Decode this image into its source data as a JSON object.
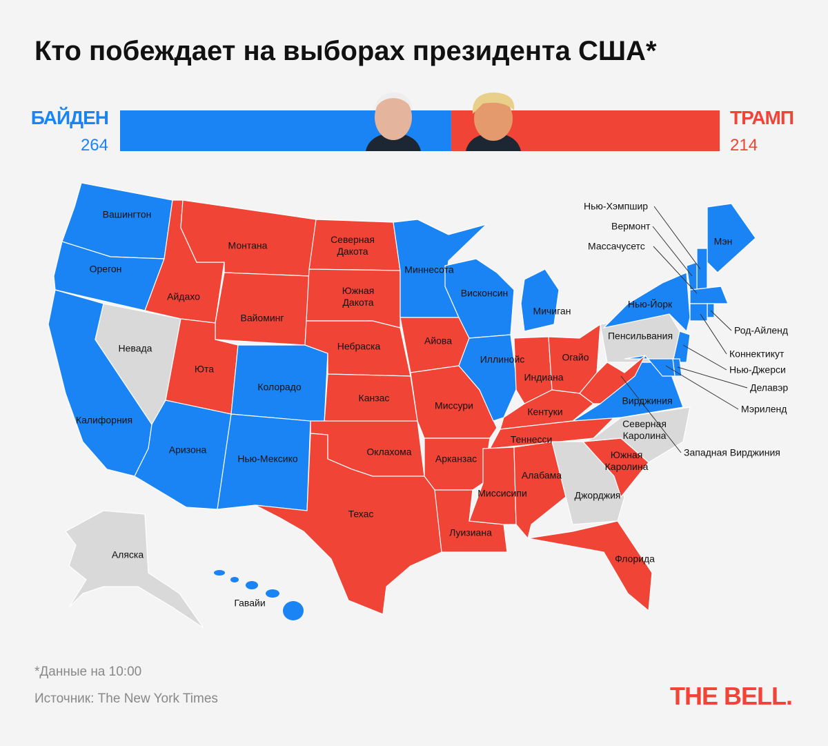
{
  "header": {
    "title": "Кто побеждает на выборах президента США*"
  },
  "scoreboard": {
    "left": {
      "name": "БАЙДЕН",
      "votes": 264,
      "color": "#1a84f4"
    },
    "right": {
      "name": "ТРАМП",
      "votes": 214,
      "color": "#f04436"
    }
  },
  "map": {
    "states": [
      {
        "label": "Вашингтон",
        "color": "#1a84f4"
      },
      {
        "label": "Орегон",
        "color": "#1a84f4"
      },
      {
        "label": "Калифорния",
        "color": "#1a84f4"
      },
      {
        "label": "Невада",
        "color": "#d9d9d9"
      },
      {
        "label": "Айдахо",
        "color": "#f04436"
      },
      {
        "label": "Монтана",
        "color": "#f04436"
      },
      {
        "label": "Вайоминг",
        "color": "#f04436"
      },
      {
        "label": "Юта",
        "color": "#f04436"
      },
      {
        "label": "Колорадо",
        "color": "#1a84f4"
      },
      {
        "label": "Аризона",
        "color": "#1a84f4"
      },
      {
        "label": "Нью-Мексико",
        "color": "#1a84f4"
      },
      {
        "label": "Северная Дакота",
        "color": "#f04436"
      },
      {
        "label": "Южная Дакота",
        "color": "#f04436"
      },
      {
        "label": "Небраска",
        "color": "#f04436"
      },
      {
        "label": "Канзас",
        "color": "#f04436"
      },
      {
        "label": "Оклахома",
        "color": "#f04436"
      },
      {
        "label": "Техас",
        "color": "#f04436"
      },
      {
        "label": "Миннесота",
        "color": "#1a84f4"
      },
      {
        "label": "Айова",
        "color": "#f04436"
      },
      {
        "label": "Миссури",
        "color": "#f04436"
      },
      {
        "label": "Арканзас",
        "color": "#f04436"
      },
      {
        "label": "Луизиана",
        "color": "#f04436"
      },
      {
        "label": "Висконсин",
        "color": "#1a84f4"
      },
      {
        "label": "Иллинойс",
        "color": "#1a84f4"
      },
      {
        "label": "Мичиган",
        "color": "#1a84f4"
      },
      {
        "label": "Индиана",
        "color": "#f04436"
      },
      {
        "label": "Огайо",
        "color": "#f04436"
      },
      {
        "label": "Кентуки",
        "color": "#f04436"
      },
      {
        "label": "Теннесси",
        "color": "#f04436"
      },
      {
        "label": "Миссисипи",
        "color": "#f04436"
      },
      {
        "label": "Алабама",
        "color": "#f04436"
      },
      {
        "label": "Джорджия",
        "color": "#d9d9d9"
      },
      {
        "label": "Флорида",
        "color": "#f04436"
      },
      {
        "label": "Южная Каролина",
        "color": "#f04436"
      },
      {
        "label": "Северная Каролина",
        "color": "#d9d9d9"
      },
      {
        "label": "Вирджиния",
        "color": "#1a84f4"
      },
      {
        "label": "Пенсильвания",
        "color": "#d9d9d9"
      },
      {
        "label": "Нью-Йорк",
        "color": "#1a84f4"
      },
      {
        "label": "Мэн",
        "color": "#1a84f4"
      },
      {
        "label": "Аляска",
        "color": "#d9d9d9"
      },
      {
        "label": "Гавайи",
        "color": "#1a84f4"
      },
      {
        "label": "Нью-Хэмпшир",
        "color": "#1a84f4"
      },
      {
        "label": "Вермонт",
        "color": "#1a84f4"
      },
      {
        "label": "Массачусетс",
        "color": "#1a84f4"
      },
      {
        "label": "Род-Айленд",
        "color": "#1a84f4"
      },
      {
        "label": "Коннектикут",
        "color": "#1a84f4"
      },
      {
        "label": "Нью-Джерси",
        "color": "#1a84f4"
      },
      {
        "label": "Делавэр",
        "color": "#1a84f4"
      },
      {
        "label": "Мэриленд",
        "color": "#1a84f4"
      },
      {
        "label": "Западная Вирджиния",
        "color": "#f04436"
      }
    ]
  },
  "footer": {
    "note": "*Данные на 10:00",
    "source": "Источник: The New York Times",
    "logo": "THE BELL."
  }
}
